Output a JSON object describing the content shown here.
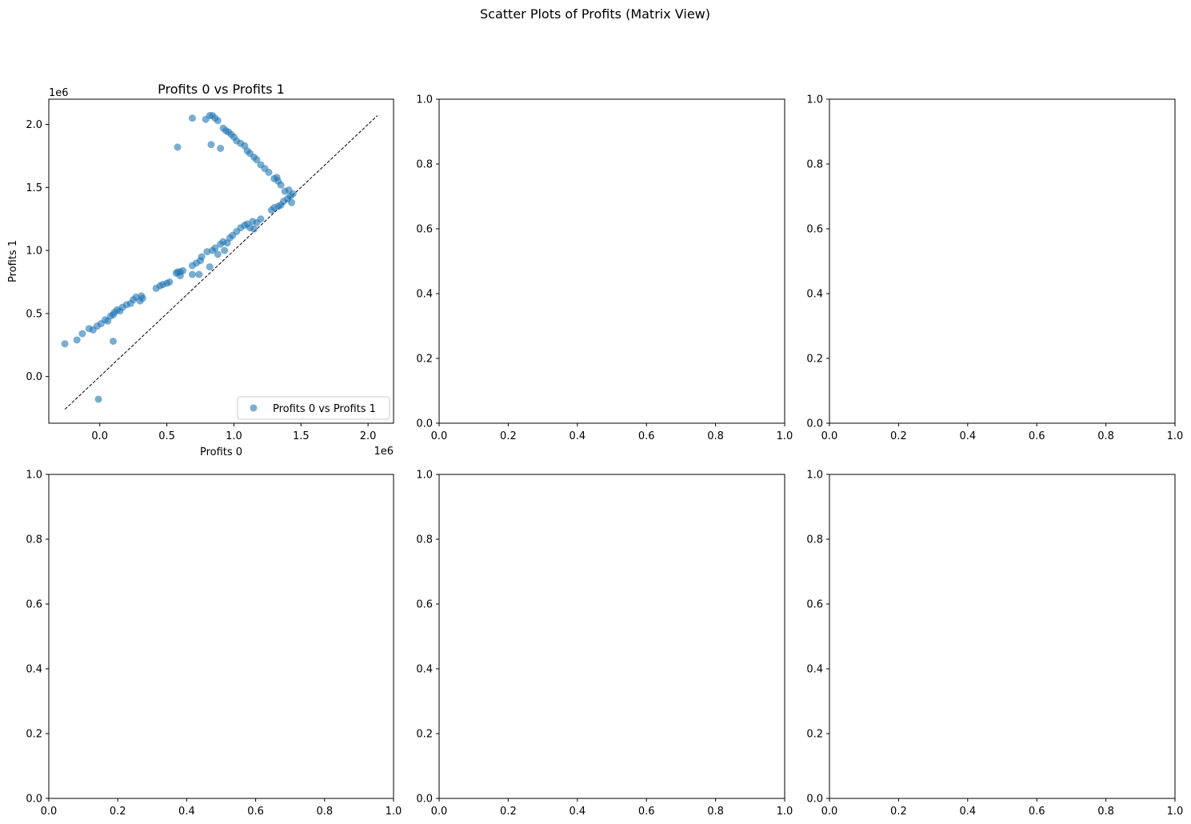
{
  "figure": {
    "suptitle": "Scatter Plots of Profits (Matrix View)"
  },
  "colors": {
    "point": "#1f77b4",
    "axis": "#000000",
    "diagonal": "#000000",
    "legend_border": "#cccccc"
  },
  "chart_data": [
    {
      "type": "scatter",
      "title": "Profits 0 vs Profits 1",
      "xlabel": "Profits 0",
      "ylabel": "Profits 1",
      "x_offset_text": "1e6",
      "y_offset_text": "1e6",
      "xlim": [
        -0.38,
        2.19
      ],
      "ylim": [
        -0.37,
        2.2
      ],
      "xticks": [
        0.0,
        0.5,
        1.0,
        1.5,
        2.0
      ],
      "yticks": [
        0.0,
        0.5,
        1.0,
        1.5,
        2.0
      ],
      "xtick_labels": [
        "0.0",
        "0.5",
        "1.0",
        "1.5",
        "2.0"
      ],
      "ytick_labels": [
        "0.0",
        "0.5",
        "1.0",
        "1.5",
        "2.0"
      ],
      "grid": false,
      "legend_position": "lower right",
      "series": [
        {
          "name": "Profits 0 vs Profits 1",
          "points": [
            [
              -0.26,
              0.26
            ],
            [
              -0.17,
              0.29
            ],
            [
              -0.13,
              0.34
            ],
            [
              -0.08,
              0.38
            ],
            [
              -0.05,
              0.37
            ],
            [
              -0.02,
              0.4
            ],
            [
              0.01,
              0.42
            ],
            [
              0.04,
              0.45
            ],
            [
              0.06,
              0.44
            ],
            [
              0.08,
              0.48
            ],
            [
              0.1,
              0.49
            ],
            [
              0.11,
              0.51
            ],
            [
              0.13,
              0.53
            ],
            [
              0.15,
              0.52
            ],
            [
              0.17,
              0.55
            ],
            [
              0.2,
              0.57
            ],
            [
              0.23,
              0.58
            ],
            [
              0.25,
              0.61
            ],
            [
              0.27,
              0.63
            ],
            [
              0.3,
              0.6
            ],
            [
              0.31,
              0.64
            ],
            [
              0.32,
              0.62
            ],
            [
              0.1,
              0.28
            ],
            [
              -0.01,
              -0.18
            ],
            [
              0.42,
              0.7
            ],
            [
              0.45,
              0.72
            ],
            [
              0.47,
              0.73
            ],
            [
              0.5,
              0.74
            ],
            [
              0.52,
              0.75
            ],
            [
              0.57,
              0.82
            ],
            [
              0.58,
              0.83
            ],
            [
              0.6,
              0.83
            ],
            [
              0.62,
              0.84
            ],
            [
              0.6,
              0.8
            ],
            [
              0.69,
              0.81
            ],
            [
              0.74,
              0.81
            ],
            [
              0.69,
              0.88
            ],
            [
              0.72,
              0.9
            ],
            [
              0.75,
              0.92
            ],
            [
              0.76,
              0.95
            ],
            [
              0.8,
              0.99
            ],
            [
              0.82,
              0.87
            ],
            [
              0.84,
              1.0
            ],
            [
              0.86,
              1.02
            ],
            [
              0.88,
              0.97
            ],
            [
              0.9,
              1.05
            ],
            [
              0.92,
              1.07
            ],
            [
              0.93,
              1.0
            ],
            [
              0.95,
              1.06
            ],
            [
              0.97,
              1.1
            ],
            [
              0.99,
              1.12
            ],
            [
              1.02,
              1.15
            ],
            [
              1.05,
              1.18
            ],
            [
              1.08,
              1.2
            ],
            [
              1.1,
              1.21
            ],
            [
              1.12,
              1.18
            ],
            [
              1.14,
              1.23
            ],
            [
              1.15,
              1.17
            ],
            [
              1.17,
              1.22
            ],
            [
              1.2,
              1.25
            ],
            [
              1.28,
              1.32
            ],
            [
              1.3,
              1.34
            ],
            [
              1.33,
              1.35
            ],
            [
              1.35,
              1.36
            ],
            [
              1.37,
              1.39
            ],
            [
              1.4,
              1.41
            ],
            [
              1.42,
              1.43
            ],
            [
              1.44,
              1.45
            ],
            [
              1.43,
              1.38
            ],
            [
              1.41,
              1.48
            ],
            [
              1.38,
              1.47
            ],
            [
              1.35,
              1.52
            ],
            [
              1.33,
              1.55
            ],
            [
              1.32,
              1.58
            ],
            [
              1.3,
              1.57
            ],
            [
              1.26,
              1.62
            ],
            [
              1.23,
              1.65
            ],
            [
              1.2,
              1.68
            ],
            [
              1.17,
              1.72
            ],
            [
              1.15,
              1.74
            ],
            [
              1.12,
              1.77
            ],
            [
              1.1,
              1.79
            ],
            [
              1.08,
              1.83
            ],
            [
              1.05,
              1.85
            ],
            [
              1.02,
              1.87
            ],
            [
              1.0,
              1.9
            ],
            [
              0.98,
              1.92
            ],
            [
              0.96,
              1.94
            ],
            [
              0.94,
              1.95
            ],
            [
              0.92,
              1.97
            ],
            [
              0.88,
              2.03
            ],
            [
              0.86,
              2.05
            ],
            [
              0.84,
              2.07
            ],
            [
              0.82,
              2.07
            ],
            [
              0.79,
              2.04
            ],
            [
              0.69,
              2.05
            ],
            [
              0.58,
              1.82
            ],
            [
              0.83,
              1.84
            ],
            [
              0.9,
              1.81
            ]
          ]
        }
      ],
      "reference_line": [
        [
          -0.26,
          -0.26
        ],
        [
          2.07,
          2.07
        ]
      ]
    },
    {
      "type": "scatter",
      "xlim": [
        0,
        1
      ],
      "ylim": [
        0,
        1
      ],
      "xtick_labels": [
        "0.0",
        "0.2",
        "0.4",
        "0.6",
        "0.8",
        "1.0"
      ],
      "ytick_labels": [
        "0.0",
        "0.2",
        "0.4",
        "0.6",
        "0.8",
        "1.0"
      ]
    },
    {
      "type": "scatter",
      "xlim": [
        0,
        1
      ],
      "ylim": [
        0,
        1
      ],
      "xtick_labels": [
        "0.0",
        "0.2",
        "0.4",
        "0.6",
        "0.8",
        "1.0"
      ],
      "ytick_labels": [
        "0.0",
        "0.2",
        "0.4",
        "0.6",
        "0.8",
        "1.0"
      ]
    },
    {
      "type": "scatter",
      "xlim": [
        0,
        1
      ],
      "ylim": [
        0,
        1
      ],
      "xtick_labels": [
        "0.0",
        "0.2",
        "0.4",
        "0.6",
        "0.8",
        "1.0"
      ],
      "ytick_labels": [
        "0.0",
        "0.2",
        "0.4",
        "0.6",
        "0.8",
        "1.0"
      ]
    },
    {
      "type": "scatter",
      "xlim": [
        0,
        1
      ],
      "ylim": [
        0,
        1
      ],
      "xtick_labels": [
        "0.0",
        "0.2",
        "0.4",
        "0.6",
        "0.8",
        "1.0"
      ],
      "ytick_labels": [
        "0.0",
        "0.2",
        "0.4",
        "0.6",
        "0.8",
        "1.0"
      ]
    },
    {
      "type": "scatter",
      "xlim": [
        0,
        1
      ],
      "ylim": [
        0,
        1
      ],
      "xtick_labels": [
        "0.0",
        "0.2",
        "0.4",
        "0.6",
        "0.8",
        "1.0"
      ],
      "ytick_labels": [
        "0.0",
        "0.2",
        "0.4",
        "0.6",
        "0.8",
        "1.0"
      ]
    }
  ]
}
